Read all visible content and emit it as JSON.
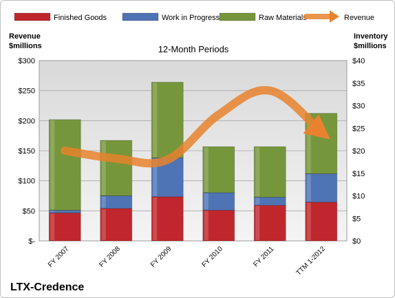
{
  "chart_data": {
    "type": "bar",
    "title": "12-Month Periods",
    "footer_title": "LTX-Credence",
    "left_axis_title": [
      "Revenue",
      "$millions"
    ],
    "right_axis_title": [
      "Inventory",
      "$millions"
    ],
    "left_ticks": [
      "$300",
      "$250",
      "$200",
      "$150",
      "$100",
      "$50",
      "$-"
    ],
    "right_ticks": [
      "$40",
      "$35",
      "$30",
      "$25",
      "$20",
      "$15",
      "$10",
      "$5",
      "$0"
    ],
    "categories": [
      "FY 2007",
      "FY 2008",
      "FY 2009",
      "FY 2010",
      "FY 2011",
      "TTM 1-2012"
    ],
    "stacked": true,
    "y2lim": [
      0,
      40
    ],
    "ylim": [
      0,
      300
    ],
    "series": [
      {
        "name": "Finished Goods",
        "axis": "right",
        "color": "#c0272d",
        "values": [
          6.2,
          7.2,
          9.8,
          6.8,
          7.9,
          8.6
        ]
      },
      {
        "name": "Work in Progress",
        "axis": "right",
        "color": "#4f74b5",
        "values": [
          0.6,
          2.8,
          8.6,
          3.9,
          1.8,
          6.3
        ]
      },
      {
        "name": "Raw Materials",
        "axis": "right",
        "color": "#76963b",
        "values": [
          20.1,
          12.3,
          16.8,
          10.2,
          11.2,
          13.4
        ]
      }
    ],
    "line": {
      "name": "Revenue",
      "axis": "left",
      "color": "#e8822e",
      "values": [
        150,
        137,
        135,
        210,
        250,
        181
      ]
    },
    "grid": true,
    "legend_position": "top"
  }
}
